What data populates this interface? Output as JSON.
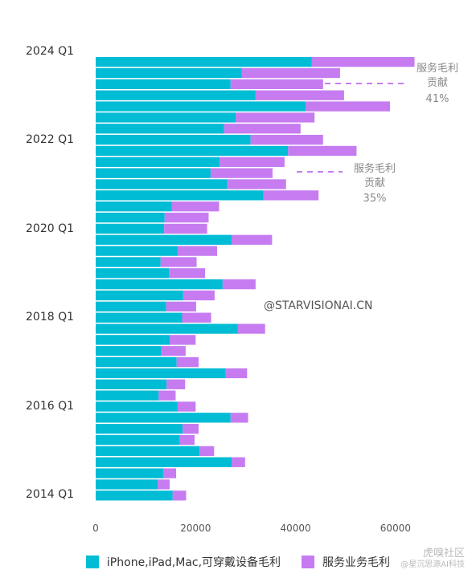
{
  "chart_data": {
    "type": "bar",
    "orientation": "horizontal",
    "stacked": true,
    "ytick_labels": [
      "2024 Q1",
      "2022 Q1",
      "2020 Q1",
      "2018 Q1",
      "2016 Q1",
      "2014 Q1"
    ],
    "xticks": [
      0,
      20000,
      40000,
      60000
    ],
    "xlim": [
      0,
      65000
    ],
    "series": [
      {
        "name": "iPhone,iPad,Mac,可穿戴设备毛利",
        "color": "#00bcd4",
        "values": [
          43200,
          29200,
          27000,
          32000,
          42000,
          28000,
          25700,
          31000,
          38500,
          24800,
          23000,
          26300,
          33600,
          15200,
          13800,
          13700,
          27200,
          16400,
          13000,
          14700,
          25400,
          17500,
          14100,
          17300,
          28400,
          14800,
          13100,
          16200,
          26000,
          14200,
          12600,
          16400,
          27000,
          17400,
          16800,
          20800,
          27200,
          13500,
          12400,
          15400
        ]
      },
      {
        "name": "服务业务毛利",
        "color": "#c67cf0",
        "values": [
          20600,
          19700,
          18500,
          17700,
          16900,
          15800,
          15300,
          14500,
          13700,
          13000,
          12400,
          11800,
          11000,
          9500,
          8800,
          8600,
          8100,
          7900,
          7200,
          7200,
          6600,
          6300,
          6000,
          5800,
          5500,
          5200,
          4900,
          4400,
          4300,
          3700,
          3400,
          3600,
          3500,
          3200,
          3000,
          2900,
          2700,
          2600,
          2400,
          2700
        ]
      }
    ],
    "annotations": [
      {
        "line1": "服务毛利",
        "line2": "贡献",
        "line3": "41%"
      },
      {
        "line1": "服务毛利",
        "line2": "贡献",
        "line3": "35%"
      }
    ],
    "watermark": "@STARVISIONAI.CN",
    "grid": false,
    "legend_position": "bottom"
  },
  "corner_watermark": {
    "main": "虎嗅社区",
    "sub": "@星沉思源AI科技"
  }
}
